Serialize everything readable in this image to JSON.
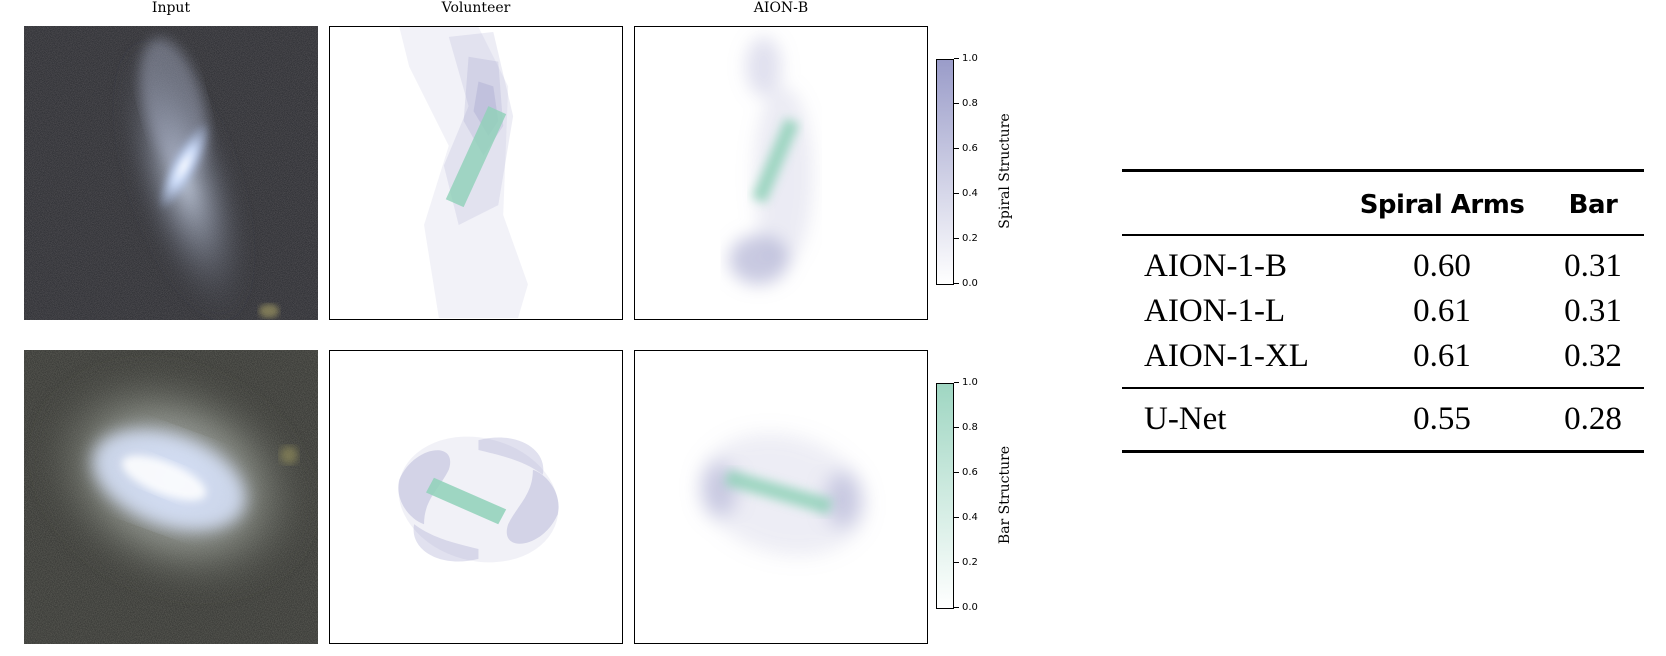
{
  "figure": {
    "column_titles": [
      "Input",
      "Volunteer",
      "AION-B"
    ],
    "colorbars": [
      {
        "label": "Spiral Structure",
        "ticks": [
          "1.0",
          "0.8",
          "0.6",
          "0.4",
          "0.2",
          "0.0"
        ],
        "color": "#9a9cc9"
      },
      {
        "label": "Bar Structure",
        "ticks": [
          "1.0",
          "0.8",
          "0.6",
          "0.4",
          "0.2",
          "0.0"
        ],
        "color": "#9fd6c2"
      }
    ]
  },
  "table": {
    "headers": [
      "",
      "Spiral Arms",
      "Bar"
    ],
    "rows": [
      {
        "model": "AION-1-B",
        "spiral": "0.60",
        "bar": "0.31"
      },
      {
        "model": "AION-1-L",
        "spiral": "0.61",
        "bar": "0.31"
      },
      {
        "model": "AION-1-XL",
        "spiral": "0.61",
        "bar": "0.32"
      }
    ],
    "baseline": {
      "model": "U-Net",
      "spiral": "0.55",
      "bar": "0.28"
    }
  },
  "colors": {
    "spiral": "#9a9cc9",
    "bar": "#8fd1b8",
    "sky": "#1c1e22"
  }
}
